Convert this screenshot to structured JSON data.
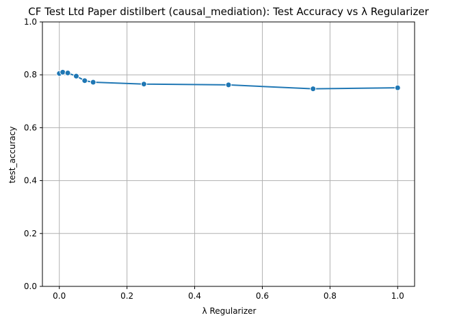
{
  "chart_data": {
    "type": "line",
    "title": "CF Test Ltd Paper distilbert (causal_mediation): Test Accuracy vs λ Regularizer",
    "xlabel": "λ Regularizer",
    "ylabel": "test_accuracy",
    "xlim": [
      -0.05,
      1.05
    ],
    "ylim": [
      0.0,
      1.0
    ],
    "grid": true,
    "x_ticks": [
      "0.0",
      "0.2",
      "0.4",
      "0.6",
      "0.8",
      "1.0"
    ],
    "y_ticks": [
      "0.0",
      "0.2",
      "0.4",
      "0.6",
      "0.8",
      "1.0"
    ],
    "series": [
      {
        "color": "#1f77b4",
        "x": [
          0.0,
          0.01,
          0.025,
          0.05,
          0.075,
          0.1,
          0.25,
          0.5,
          0.75,
          1.0
        ],
        "y": [
          0.805,
          0.81,
          0.807,
          0.795,
          0.778,
          0.772,
          0.765,
          0.762,
          0.747,
          0.751
        ]
      }
    ]
  }
}
